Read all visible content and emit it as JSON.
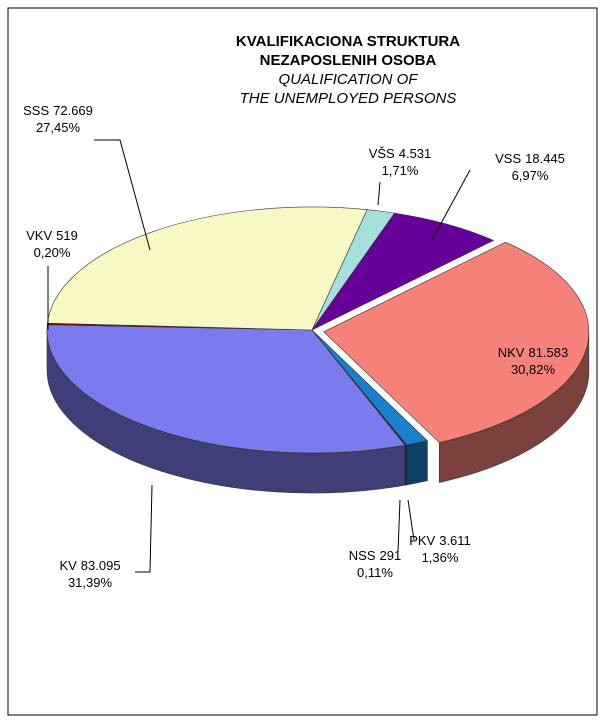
{
  "chart_data": {
    "type": "pie",
    "title": [
      "KVALIFIKACIONA STRUKTURA",
      "NEZAPOSLENIH OSOBA"
    ],
    "subtitle": [
      "QUALIFICATION OF",
      "THE UNEMPLOYED PERSONS"
    ],
    "categories": [
      "VŠS",
      "VSS",
      "NKV",
      "PKV",
      "NSS",
      "KV",
      "VKV",
      "SSS"
    ],
    "values": [
      4531,
      18445,
      81583,
      3611,
      291,
      83095,
      519,
      72669
    ],
    "value_labels": [
      "4.531",
      "18.445",
      "81.583",
      "3.611",
      "291",
      "83.095",
      "519",
      "72.669"
    ],
    "shares": [
      1.71,
      6.97,
      30.82,
      1.36,
      0.11,
      31.39,
      0.2,
      27.45
    ],
    "share_labels": [
      "1,71%",
      "6,97%",
      "30,82%",
      "1,36%",
      "0,11%",
      "31,39%",
      "0,20%",
      "27,45%"
    ],
    "colors": [
      "#a6e0dc",
      "#660099",
      "#f78279",
      "#1a80cc",
      "#22226a",
      "#7b7bef",
      "#800000",
      "#f8f8c4"
    ],
    "exploded": [
      "NKV"
    ]
  }
}
